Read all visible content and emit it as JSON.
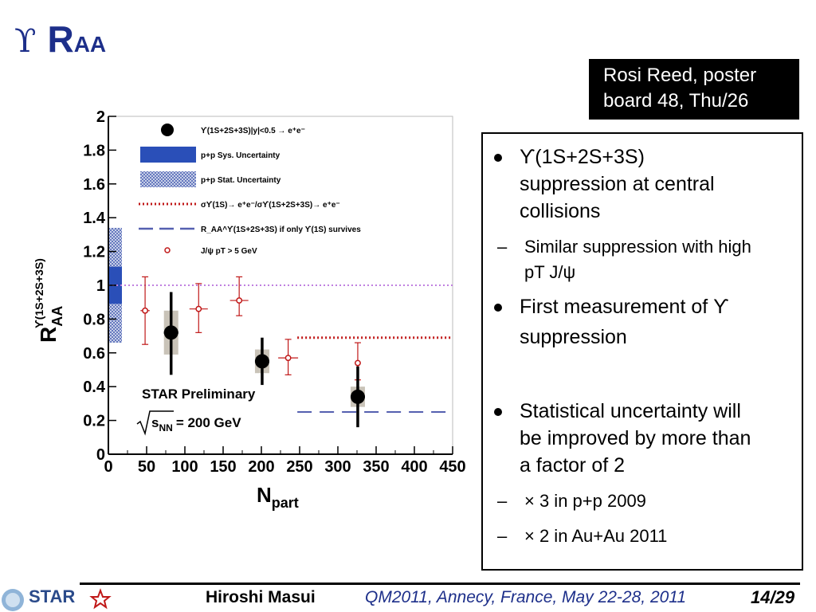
{
  "slide": {
    "title_symbol": "ϒ",
    "title_main": "R",
    "title_sub": "AA",
    "poster_line1": "Rosi Reed, poster",
    "poster_line2": "board 48, Thu/26"
  },
  "bullets": [
    {
      "kind": "main",
      "lines": [
        "ϒ(1S+2S+3S)",
        "suppression at central",
        "collisions"
      ]
    },
    {
      "kind": "sub",
      "lines": [
        "Similar suppression with high",
        "pT J/ψ"
      ]
    },
    {
      "kind": "main",
      "lines": [
        "First measurement of ϒ",
        "suppression"
      ]
    },
    {
      "kind": "main",
      "lines": [
        "Statistical uncertainty will",
        "be improved by more than",
        "a factor of 2"
      ]
    },
    {
      "kind": "sub",
      "lines": [
        "× 3 in p+p 2009"
      ]
    },
    {
      "kind": "sub",
      "lines": [
        "× 2 in Au+Au 2011"
      ]
    }
  ],
  "footer": {
    "logo_text": "STAR",
    "author": "Hiroshi Masui",
    "conference": "QM2011, Annecy, France, May 22-28, 2011",
    "page": "14/29"
  },
  "chart_data": {
    "type": "scatter",
    "x_label": "N",
    "x_label_sub": "part",
    "y_label_main": "R",
    "y_label_sub": "AA",
    "y_label_sup": "ϒ(1S+2S+3S)",
    "xlim": [
      0,
      450
    ],
    "ylim": [
      0,
      2
    ],
    "x_ticks": [
      "0",
      "50",
      "100",
      "150",
      "200",
      "250",
      "300",
      "350",
      "400",
      "450"
    ],
    "y_ticks": [
      "0",
      "0.2",
      "0.4",
      "0.6",
      "0.8",
      "1",
      "1.2",
      "1.4",
      "1.6",
      "1.8",
      "2"
    ],
    "annotation_preliminary": "STAR Preliminary",
    "annotation_energy_root": "s",
    "annotation_energy_sub": "NN",
    "annotation_energy_value": "= 200 GeV",
    "legend": [
      {
        "kind": "upsilon",
        "label": "ϒ(1S+2S+3S)|y|<0.5 → e⁺e⁻"
      },
      {
        "kind": "sys",
        "label": "p+p Sys. Uncertainty"
      },
      {
        "kind": "stat",
        "label": "p+p Stat. Uncertainty"
      },
      {
        "kind": "red-dotted",
        "label": "σϒ(1S)→ e⁺e⁻/σϒ(1S+2S+3S)→ e⁺e⁻"
      },
      {
        "kind": "blue-dashed",
        "label": "R_AA^ϒ(1S+2S+3S) if only ϒ(1S) survives"
      },
      {
        "kind": "jpsi",
        "label": "J/ψ  pT > 5 GeV"
      }
    ],
    "series": [
      {
        "name": "ϒ(1S+2S+3S)",
        "points": [
          {
            "x": 82,
            "y": 0.72,
            "err_low": 0.25,
            "err_high": 0.24,
            "sys": 0.13
          },
          {
            "x": 201,
            "y": 0.55,
            "err_low": 0.14,
            "err_high": 0.14,
            "sys": 0.07
          },
          {
            "x": 326,
            "y": 0.34,
            "err_low": 0.18,
            "err_high": 0.18,
            "sys": 0.06
          }
        ]
      },
      {
        "name": "J/ψ  pT > 5 GeV",
        "points": [
          {
            "x": 48,
            "y": 0.85,
            "xerr": 6,
            "err_low": 0.2,
            "err_high": 0.2
          },
          {
            "x": 118,
            "y": 0.86,
            "xerr": 12,
            "err_low": 0.14,
            "err_high": 0.15
          },
          {
            "x": 171,
            "y": 0.91,
            "xerr": 12,
            "err_low": 0.09,
            "err_high": 0.14
          },
          {
            "x": 235,
            "y": 0.57,
            "xerr": 13,
            "err_low": 0.1,
            "err_high": 0.11
          },
          {
            "x": 326,
            "y": 0.54,
            "xerr": 0,
            "err_low": 0.1,
            "err_high": 0.12
          }
        ]
      }
    ],
    "reference_lines": [
      {
        "name": "unity",
        "y": 1.0,
        "x_range": [
          0,
          450
        ],
        "color": "#c080e0",
        "style": "dotted"
      },
      {
        "name": "upsilon-1S-fraction",
        "y": 0.69,
        "x_range": [
          247,
          450
        ],
        "color": "#c01818",
        "style": "dotted"
      },
      {
        "name": "only-1S-survives",
        "y": 0.25,
        "x_range": [
          247,
          450
        ],
        "color": "#5560b0",
        "style": "dashed"
      }
    ],
    "pp_uncertainty": {
      "sys_low": 0.89,
      "sys_high": 1.11,
      "stat_low": 0.66,
      "stat_high": 1.34
    }
  }
}
